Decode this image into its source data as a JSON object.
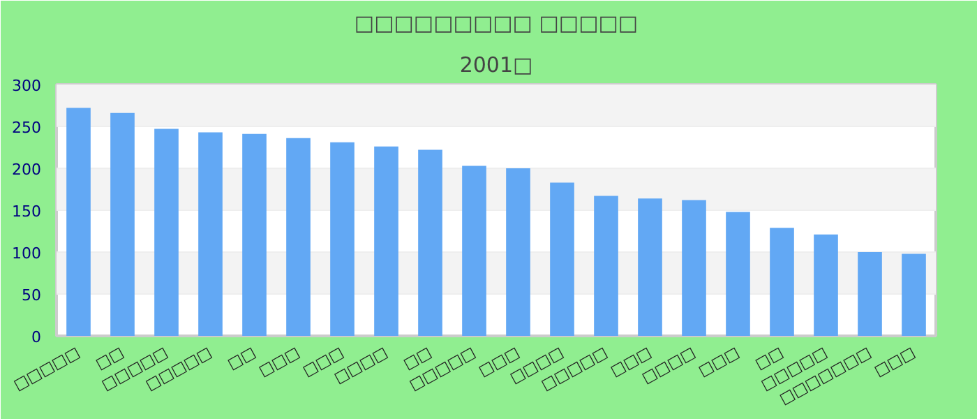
{
  "chart_data": {
    "type": "bar",
    "title": "□□□□□□□□□ □□□□□",
    "subtitle": "2001□",
    "categories": [
      "□□□□□",
      "□□",
      "□□□□□",
      "□□□□□",
      "□□",
      "□□□",
      "□□□",
      "□□□□",
      "□□",
      "□□□□□",
      "□□□",
      "□□□□",
      "□□□□□",
      "□□□",
      "□□□□",
      "□□□",
      "□□",
      "□□□□□",
      "□□□□□□□",
      "□□□"
    ],
    "values": [
      272,
      266,
      247,
      243,
      241,
      236,
      231,
      226,
      222,
      203,
      200,
      183,
      167,
      164,
      162,
      148,
      129,
      121,
      100,
      98
    ],
    "color": "#62a8f4",
    "ylim": [
      0,
      300
    ],
    "yticks": [
      0,
      50,
      100,
      150,
      200,
      250,
      300
    ],
    "grid": "y"
  }
}
